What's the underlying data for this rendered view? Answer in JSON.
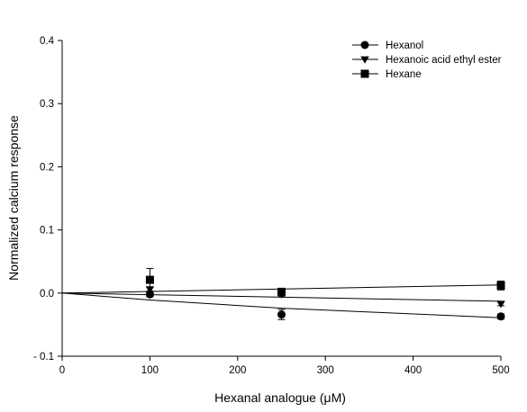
{
  "chart_data": {
    "type": "scatter",
    "title": "",
    "xlabel": "Hexanal analogue (μM)",
    "ylabel": "Normalized calcium response",
    "xlim": [
      0,
      500
    ],
    "ylim": [
      -0.1,
      0.4
    ],
    "x_ticks": [
      0,
      100,
      200,
      300,
      400,
      500
    ],
    "x_tick_labels": [
      "0",
      "100",
      "200",
      "300",
      "400",
      "500"
    ],
    "y_ticks": [
      -0.1,
      0.0,
      0.1,
      0.2,
      0.3,
      0.4
    ],
    "y_tick_labels": [
      "- 0.1",
      "0.0",
      "0.1",
      "0.2",
      "0.3",
      "0.4"
    ],
    "grid": false,
    "legend_position": "top-right",
    "series": [
      {
        "name": "Hexanol",
        "marker": "circle",
        "color": "#000000",
        "x": [
          100,
          250,
          500
        ],
        "y": [
          -0.002,
          -0.034,
          -0.037
        ],
        "err": [
          0.004,
          0.008,
          0.004
        ],
        "fit": [
          [
            0,
            0.0
          ],
          [
            100,
            -0.011
          ],
          [
            250,
            -0.024
          ],
          [
            500,
            -0.039
          ]
        ]
      },
      {
        "name": "Hexanoic acid ethyl ester",
        "marker": "triangle-down",
        "color": "#000000",
        "x": [
          100,
          250,
          500
        ],
        "y": [
          0.006,
          -0.002,
          -0.017
        ],
        "err": [
          0.003,
          0.003,
          0.003
        ],
        "fit": [
          [
            0,
            0.0
          ],
          [
            500,
            -0.013
          ]
        ]
      },
      {
        "name": "Hexane",
        "marker": "square",
        "color": "#000000",
        "x": [
          100,
          250,
          500
        ],
        "y": [
          0.021,
          0.002,
          0.012
        ],
        "err": [
          0.018,
          0.004,
          0.007
        ],
        "fit": [
          [
            0,
            0.0
          ],
          [
            500,
            0.013
          ]
        ]
      }
    ]
  }
}
